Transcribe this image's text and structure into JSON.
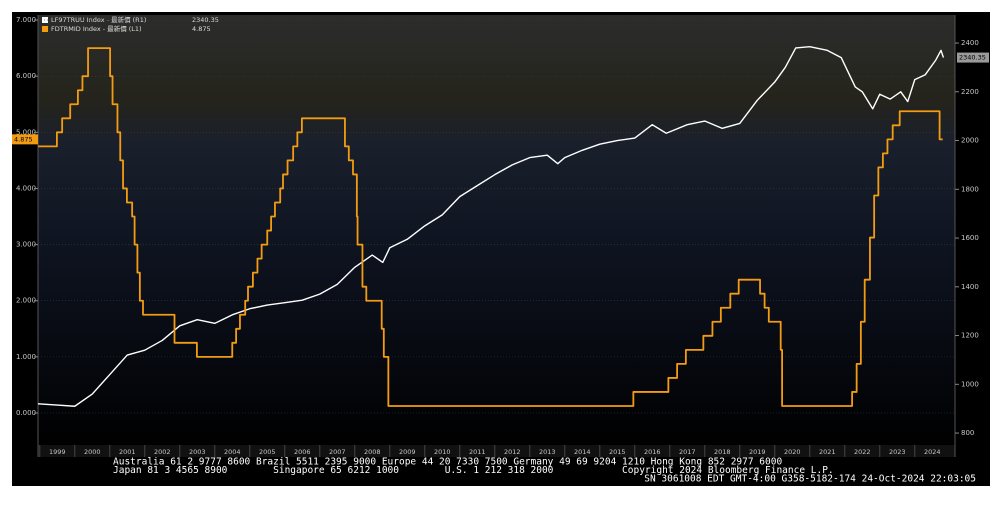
{
  "chart_data": {
    "type": "line",
    "legend": "upper left",
    "grid": true,
    "xlim": [
      1998.95,
      2025.15
    ],
    "xticks": [
      1999,
      2000,
      2001,
      2002,
      2003,
      2004,
      2005,
      2006,
      2007,
      2008,
      2009,
      2010,
      2011,
      2012,
      2013,
      2014,
      2015,
      2016,
      2017,
      2018,
      2019,
      2020,
      2021,
      2022,
      2023,
      2024
    ],
    "ylim": [
      -0.57,
      7.09
    ],
    "yticks": [
      {
        "value": 0,
        "label": "0.000"
      },
      {
        "value": 1,
        "label": "1.000"
      },
      {
        "value": 2,
        "label": "2.000"
      },
      {
        "value": 3,
        "label": "3.000"
      },
      {
        "value": 4,
        "label": "4.000"
      },
      {
        "value": 5,
        "label": "5.000"
      },
      {
        "value": 6,
        "label": "6.000"
      },
      {
        "value": 7,
        "label": "7.000"
      }
    ],
    "y2lim": [
      751,
      2515
    ],
    "y2ticks": [
      800,
      1000,
      1200,
      1400,
      1600,
      1800,
      2000,
      2200,
      2400
    ],
    "series": [
      {
        "name": "LF97TRUU Index - 最新價 (R1)",
        "color": "#ffffff",
        "axis": "y2",
        "x": [
          1998.95,
          1999.5,
          2000.0,
          2000.5,
          2001.0,
          2001.5,
          2002.0,
          2002.5,
          2003.0,
          2003.5,
          2004.0,
          2004.5,
          2005.0,
          2005.5,
          2006.0,
          2006.5,
          2007.0,
          2007.5,
          2008.0,
          2008.5,
          2008.8,
          2009.0,
          2009.5,
          2010.0,
          2010.5,
          2011.0,
          2011.5,
          2012.0,
          2012.5,
          2013.0,
          2013.5,
          2013.8,
          2014.0,
          2014.5,
          2015.0,
          2015.5,
          2016.0,
          2016.5,
          2016.9,
          2017.5,
          2018.0,
          2018.5,
          2019.0,
          2019.5,
          2020.0,
          2020.3,
          2020.6,
          2021.0,
          2021.5,
          2021.9,
          2022.3,
          2022.5,
          2022.8,
          2023.0,
          2023.3,
          2023.6,
          2023.8,
          2024.0,
          2024.3,
          2024.6,
          2024.75,
          2024.82
        ],
        "values": [
          920,
          915,
          910,
          960,
          1040,
          1120,
          1140,
          1180,
          1240,
          1265,
          1250,
          1285,
          1310,
          1325,
          1335,
          1345,
          1370,
          1410,
          1480,
          1530,
          1500,
          1560,
          1595,
          1650,
          1695,
          1770,
          1815,
          1860,
          1900,
          1930,
          1940,
          1905,
          1930,
          1960,
          1985,
          2000,
          2010,
          2065,
          2030,
          2065,
          2080,
          2050,
          2070,
          2165,
          2240,
          2300,
          2380,
          2385,
          2370,
          2340,
          2220,
          2200,
          2130,
          2190,
          2170,
          2200,
          2160,
          2250,
          2270,
          2330,
          2370,
          2340.35
        ]
      },
      {
        "name": "FDTRMID Index - 最新價 (L1)",
        "color": "#f39c12",
        "x": [
          1998.95,
          1999.49,
          1999.49,
          1999.64,
          1999.64,
          1999.87,
          1999.87,
          2000.09,
          2000.09,
          2000.22,
          2000.22,
          2000.38,
          2000.38,
          2001.01,
          2001.01,
          2001.08,
          2001.08,
          2001.22,
          2001.22,
          2001.3,
          2001.3,
          2001.38,
          2001.38,
          2001.49,
          2001.49,
          2001.64,
          2001.64,
          2001.71,
          2001.71,
          2001.79,
          2001.79,
          2001.86,
          2001.86,
          2001.95,
          2001.95,
          2002.85,
          2002.85,
          2003.49,
          2003.49,
          2004.5,
          2004.5,
          2004.61,
          2004.61,
          2004.72,
          2004.72,
          2004.87,
          2004.87,
          2004.95,
          2004.95,
          2005.09,
          2005.09,
          2005.22,
          2005.22,
          2005.34,
          2005.34,
          2005.5,
          2005.5,
          2005.61,
          2005.61,
          2005.72,
          2005.72,
          2005.87,
          2005.87,
          2005.95,
          2005.95,
          2006.08,
          2006.08,
          2006.24,
          2006.24,
          2006.36,
          2006.36,
          2006.49,
          2006.49,
          2007.72,
          2007.72,
          2007.83,
          2007.83,
          2007.95,
          2007.95,
          2008.06,
          2008.06,
          2008.08,
          2008.08,
          2008.22,
          2008.22,
          2008.33,
          2008.33,
          2008.77,
          2008.77,
          2008.83,
          2008.83,
          2008.96,
          2008.96,
          2015.96,
          2015.96,
          2016.96,
          2016.96,
          2017.21,
          2017.21,
          2017.46,
          2017.46,
          2017.96,
          2017.96,
          2018.22,
          2018.22,
          2018.46,
          2018.46,
          2018.73,
          2018.73,
          2018.97,
          2018.97,
          2019.58,
          2019.58,
          2019.71,
          2019.71,
          2019.83,
          2019.83,
          2020.17,
          2020.17,
          2020.21,
          2020.21,
          2022.21,
          2022.21,
          2022.34,
          2022.34,
          2022.46,
          2022.46,
          2022.57,
          2022.57,
          2022.72,
          2022.72,
          2022.84,
          2022.84,
          2022.96,
          2022.96,
          2023.09,
          2023.09,
          2023.22,
          2023.22,
          2023.37,
          2023.37,
          2023.57,
          2023.57,
          2024.71,
          2024.71,
          2024.8
        ],
        "values": [
          4.75,
          4.75,
          5.0,
          5.0,
          5.25,
          5.25,
          5.5,
          5.5,
          5.75,
          5.75,
          6.0,
          6.0,
          6.5,
          6.5,
          6.0,
          6.0,
          5.5,
          5.5,
          5.0,
          5.0,
          4.5,
          4.5,
          4.0,
          4.0,
          3.75,
          3.75,
          3.5,
          3.5,
          3.0,
          3.0,
          2.5,
          2.5,
          2.0,
          2.0,
          1.75,
          1.75,
          1.25,
          1.25,
          1.0,
          1.0,
          1.25,
          1.25,
          1.5,
          1.5,
          1.75,
          1.75,
          2.0,
          2.0,
          2.25,
          2.25,
          2.5,
          2.5,
          2.75,
          2.75,
          3.0,
          3.0,
          3.25,
          3.25,
          3.5,
          3.5,
          3.75,
          3.75,
          4.0,
          4.0,
          4.25,
          4.25,
          4.5,
          4.5,
          4.75,
          4.75,
          5.0,
          5.0,
          5.25,
          5.25,
          4.75,
          4.75,
          4.5,
          4.5,
          4.25,
          4.25,
          3.5,
          3.5,
          3.0,
          3.0,
          2.25,
          2.25,
          2.0,
          2.0,
          1.5,
          1.5,
          1.0,
          1.0,
          0.125,
          0.125,
          0.375,
          0.375,
          0.625,
          0.625,
          0.875,
          0.875,
          1.125,
          1.125,
          1.375,
          1.375,
          1.625,
          1.625,
          1.875,
          1.875,
          2.125,
          2.125,
          2.375,
          2.375,
          2.125,
          2.125,
          1.875,
          1.875,
          1.625,
          1.625,
          1.125,
          1.125,
          0.125,
          0.125,
          0.375,
          0.375,
          0.875,
          0.875,
          1.625,
          1.625,
          2.375,
          2.375,
          3.125,
          3.125,
          3.875,
          3.875,
          4.375,
          4.375,
          4.625,
          4.625,
          4.875,
          4.875,
          5.125,
          5.125,
          5.375,
          5.375,
          4.875,
          4.875
        ]
      }
    ]
  },
  "footer": [
    "Australia 61 2 9777 8600 Brazil 5511 2395 9000 Europe 44 20 7330 7500 Germany 49 69 9204 1210 Hong Kong 852 2977 6000",
    "Japan 81 3 4565 8900        Singapore 65 6212 1000        U.S. 1 212 318 2000            Copyright 2024 Bloomberg Finance L.P.",
    "SN 3061008 EDT  GMT-4:00 G358-5182-174 24-Oct-2024 22:03:05"
  ]
}
